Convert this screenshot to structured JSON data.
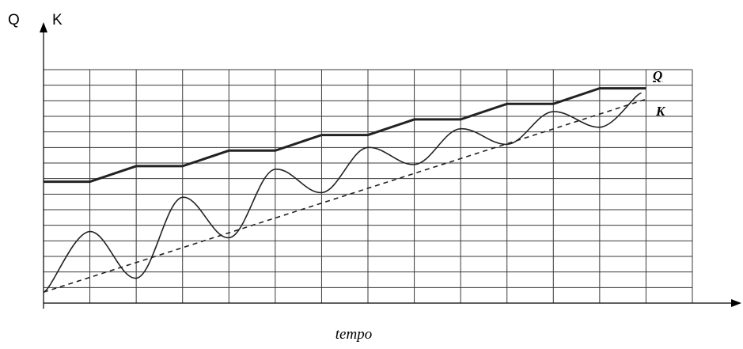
{
  "chart_data": {
    "type": "line",
    "ylabel_q": "Q",
    "ylabel_k": "K",
    "xlabel": "tempo",
    "xlim": [
      0,
      14
    ],
    "ylim": [
      0,
      15
    ],
    "grid": true,
    "series": [
      {
        "name": "Q",
        "style": "thick-stepped",
        "color": "#222222",
        "x": [
          0,
          1,
          2,
          3,
          4,
          5,
          6,
          7,
          8,
          9,
          10,
          11,
          12,
          13
        ],
        "y": [
          7.8,
          7.8,
          8.8,
          8.8,
          9.8,
          9.8,
          10.8,
          10.8,
          11.8,
          11.8,
          12.8,
          12.8,
          13.8,
          13.8
        ]
      },
      {
        "name": "K",
        "style": "dashed",
        "color": "#222222",
        "x": [
          0,
          13
        ],
        "y": [
          0.7,
          13.1
        ]
      },
      {
        "name": "",
        "style": "oscillating",
        "color": "#222222",
        "x": [
          0,
          1,
          2,
          3,
          4,
          5,
          6,
          7,
          8,
          9,
          10,
          11,
          12,
          12.9
        ],
        "y": [
          0.7,
          4.6,
          1.6,
          6.8,
          4.2,
          8.6,
          7.1,
          10.0,
          8.9,
          11.2,
          10.2,
          12.3,
          11.3,
          13.5
        ]
      }
    ]
  }
}
